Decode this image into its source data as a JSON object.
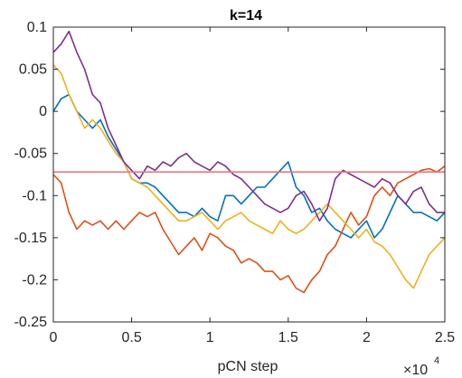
{
  "chart_data": {
    "type": "line",
    "title": "k=14",
    "xlabel": "pCN step",
    "ylabel": "",
    "x_exponent_base": "×10",
    "x_exponent_power": "4",
    "xlim": [
      0,
      25000
    ],
    "ylim": [
      -0.25,
      0.1
    ],
    "xticks": [
      0,
      5000,
      10000,
      15000,
      20000,
      25000
    ],
    "xtick_labels": [
      "0",
      "0.5",
      "1",
      "1.5",
      "2",
      "2.5"
    ],
    "yticks": [
      0.1,
      0.05,
      0,
      -0.05,
      -0.1,
      -0.15,
      -0.2,
      -0.25
    ],
    "ytick_labels": [
      "0.1",
      "0.05",
      "0",
      "-0.05",
      "-0.1",
      "-0.15",
      "-0.2",
      "-0.25"
    ],
    "grid": false,
    "reference_line": {
      "y": -0.072,
      "color": "#e8797b"
    },
    "series": [
      {
        "color": "#0072bd",
        "x": [
          0,
          500,
          1000,
          1500,
          2000,
          2500,
          3000,
          3500,
          4000,
          4500,
          5000,
          5500,
          6000,
          6500,
          7000,
          7500,
          8000,
          8500,
          9000,
          9500,
          10000,
          10500,
          11000,
          11500,
          12000,
          12500,
          13000,
          13500,
          14000,
          14500,
          15000,
          15500,
          16000,
          16500,
          17000,
          17500,
          18000,
          18500,
          19000,
          19500,
          20000,
          20500,
          21000,
          21500,
          22000,
          22500,
          23000,
          23500,
          24000,
          24500,
          25000
        ],
        "y": [
          0.0,
          0.015,
          0.02,
          0.0,
          -0.01,
          -0.02,
          -0.01,
          -0.03,
          -0.045,
          -0.06,
          -0.08,
          -0.085,
          -0.085,
          -0.09,
          -0.1,
          -0.11,
          -0.12,
          -0.12,
          -0.125,
          -0.115,
          -0.125,
          -0.13,
          -0.1,
          -0.1,
          -0.11,
          -0.1,
          -0.09,
          -0.09,
          -0.08,
          -0.07,
          -0.06,
          -0.09,
          -0.1,
          -0.12,
          -0.115,
          -0.13,
          -0.14,
          -0.145,
          -0.15,
          -0.14,
          -0.13,
          -0.15,
          -0.14,
          -0.12,
          -0.1,
          -0.11,
          -0.12,
          -0.12,
          -0.125,
          -0.13,
          -0.12
        ]
      },
      {
        "color": "#d95319",
        "x": [
          0,
          500,
          1000,
          1500,
          2000,
          2500,
          3000,
          3500,
          4000,
          4500,
          5000,
          5500,
          6000,
          6500,
          7000,
          7500,
          8000,
          8500,
          9000,
          9500,
          10000,
          10500,
          11000,
          11500,
          12000,
          12500,
          13000,
          13500,
          14000,
          14500,
          15000,
          15500,
          16000,
          16500,
          17000,
          17500,
          18000,
          18500,
          19000,
          19500,
          20000,
          20500,
          21000,
          21500,
          22000,
          22500,
          23000,
          23500,
          24000,
          24500,
          25000
        ],
        "y": [
          -0.075,
          -0.085,
          -0.12,
          -0.14,
          -0.13,
          -0.135,
          -0.13,
          -0.14,
          -0.13,
          -0.14,
          -0.13,
          -0.12,
          -0.125,
          -0.12,
          -0.14,
          -0.155,
          -0.17,
          -0.16,
          -0.15,
          -0.165,
          -0.145,
          -0.15,
          -0.16,
          -0.165,
          -0.18,
          -0.175,
          -0.18,
          -0.19,
          -0.19,
          -0.2,
          -0.195,
          -0.21,
          -0.215,
          -0.2,
          -0.19,
          -0.17,
          -0.16,
          -0.14,
          -0.12,
          -0.135,
          -0.125,
          -0.1,
          -0.09,
          -0.1,
          -0.085,
          -0.08,
          -0.075,
          -0.07,
          -0.068,
          -0.072,
          -0.065
        ]
      },
      {
        "color": "#edb120",
        "x": [
          0,
          500,
          1000,
          1500,
          2000,
          2500,
          3000,
          3500,
          4000,
          4500,
          5000,
          5500,
          6000,
          6500,
          7000,
          7500,
          8000,
          8500,
          9000,
          9500,
          10000,
          10500,
          11000,
          11500,
          12000,
          12500,
          13000,
          13500,
          14000,
          14500,
          15000,
          15500,
          16000,
          16500,
          17000,
          17500,
          18000,
          18500,
          19000,
          19500,
          20000,
          20500,
          21000,
          21500,
          22000,
          22500,
          23000,
          23500,
          24000,
          24500,
          25000
        ],
        "y": [
          0.055,
          0.045,
          0.02,
          0.0,
          -0.02,
          -0.01,
          -0.02,
          -0.035,
          -0.05,
          -0.06,
          -0.08,
          -0.085,
          -0.09,
          -0.1,
          -0.11,
          -0.12,
          -0.13,
          -0.13,
          -0.125,
          -0.12,
          -0.13,
          -0.14,
          -0.13,
          -0.125,
          -0.12,
          -0.13,
          -0.135,
          -0.14,
          -0.145,
          -0.13,
          -0.14,
          -0.145,
          -0.14,
          -0.13,
          -0.12,
          -0.11,
          -0.12,
          -0.13,
          -0.14,
          -0.15,
          -0.14,
          -0.155,
          -0.16,
          -0.17,
          -0.185,
          -0.2,
          -0.21,
          -0.19,
          -0.17,
          -0.16,
          -0.15
        ]
      },
      {
        "color": "#7e2f8e",
        "x": [
          0,
          500,
          1000,
          1500,
          2000,
          2500,
          3000,
          3500,
          4000,
          4500,
          5000,
          5500,
          6000,
          6500,
          7000,
          7500,
          8000,
          8500,
          9000,
          9500,
          10000,
          10500,
          11000,
          11500,
          12000,
          12500,
          13000,
          13500,
          14000,
          14500,
          15000,
          15500,
          16000,
          16500,
          17000,
          17500,
          18000,
          18500,
          19000,
          19500,
          20000,
          20500,
          21000,
          21500,
          22000,
          22500,
          23000,
          23500,
          24000,
          24500,
          25000
        ],
        "y": [
          0.07,
          0.08,
          0.095,
          0.07,
          0.05,
          0.02,
          0.01,
          -0.02,
          -0.04,
          -0.06,
          -0.07,
          -0.08,
          -0.065,
          -0.07,
          -0.06,
          -0.065,
          -0.055,
          -0.05,
          -0.06,
          -0.065,
          -0.07,
          -0.06,
          -0.065,
          -0.075,
          -0.08,
          -0.09,
          -0.1,
          -0.11,
          -0.115,
          -0.12,
          -0.115,
          -0.1,
          -0.095,
          -0.11,
          -0.13,
          -0.115,
          -0.08,
          -0.07,
          -0.075,
          -0.08,
          -0.085,
          -0.09,
          -0.08,
          -0.085,
          -0.1,
          -0.11,
          -0.095,
          -0.09,
          -0.11,
          -0.12,
          -0.12
        ]
      }
    ]
  }
}
